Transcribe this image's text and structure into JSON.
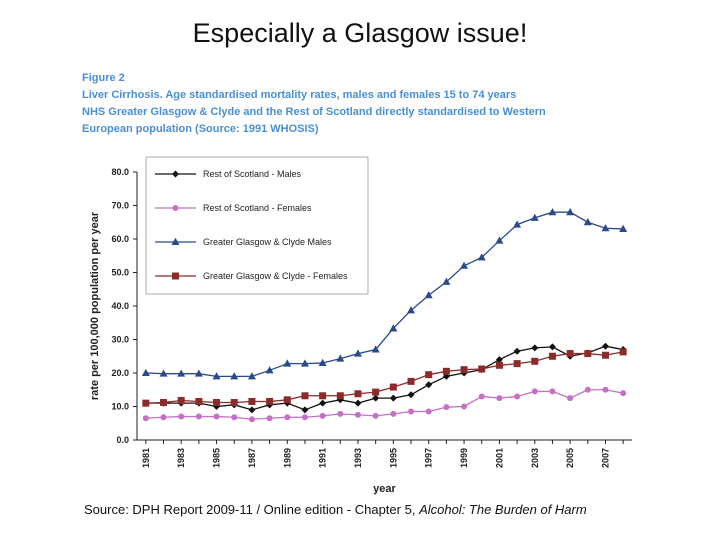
{
  "slide": {
    "title": "Especially a Glasgow issue!"
  },
  "figure": {
    "caption_lines": [
      "Figure 2",
      "Liver Cirrhosis. Age standardised mortality rates, males and females 15 to 74 years",
      "NHS Greater Glasgow & Clyde and the Rest of Scotland directly standardised to Western",
      "European population  (Source: 1991 WHOSIS)"
    ]
  },
  "source": {
    "prefix": "Source: DPH Report 2009-11 / Online edition - Chapter 5, ",
    "title": "Alcohol: The Burden of Harm"
  },
  "chart_data": {
    "type": "line",
    "title": "",
    "xlabel": "year",
    "ylabel": "rate per 100,000 population per year",
    "xlim": [
      1981,
      2008
    ],
    "ylim": [
      0,
      80
    ],
    "y_ticks": [
      "0.0",
      "10.0",
      "20.0",
      "30.0",
      "40.0",
      "50.0",
      "60.0",
      "70.0",
      "80.0"
    ],
    "x_ticks": [
      "1981",
      "1983",
      "1985",
      "1987",
      "1989",
      "1991",
      "1993",
      "1995",
      "1997",
      "1999",
      "2001",
      "2003",
      "2005",
      "2007"
    ],
    "grid": false,
    "legend_position": "top-left",
    "x": [
      1981,
      1982,
      1983,
      1984,
      1985,
      1986,
      1987,
      1988,
      1989,
      1990,
      1991,
      1992,
      1993,
      1994,
      1995,
      1996,
      1997,
      1998,
      1999,
      2000,
      2001,
      2002,
      2003,
      2004,
      2005,
      2006,
      2007,
      2008
    ],
    "series": [
      {
        "name": "Rest of Scotland - Males",
        "color": "#111111",
        "marker": "diamond",
        "values": [
          11.0,
          11.0,
          11.0,
          11.0,
          10.0,
          10.5,
          9.0,
          10.5,
          11.0,
          9.0,
          11.0,
          12.0,
          11.0,
          12.5,
          12.5,
          13.5,
          16.5,
          19.0,
          20.0,
          21.0,
          24.0,
          26.5,
          27.5,
          27.8,
          25.0,
          26.0,
          28.0,
          27.0
        ]
      },
      {
        "name": "Rest of Scotland - Females",
        "color": "#c470c4",
        "marker": "circle",
        "values": [
          6.5,
          6.8,
          7.0,
          7.0,
          7.0,
          6.8,
          6.2,
          6.5,
          6.8,
          6.8,
          7.2,
          7.8,
          7.5,
          7.2,
          7.8,
          8.5,
          8.5,
          9.8,
          10.0,
          13.0,
          12.5,
          13.0,
          14.5,
          14.5,
          12.5,
          15.0,
          15.0,
          14.0
        ]
      },
      {
        "name": "Greater Glasgow & Clyde Males",
        "color": "#2b4a8a",
        "marker": "triangle",
        "values": [
          20.0,
          19.8,
          19.8,
          19.8,
          19.0,
          19.0,
          19.0,
          20.8,
          22.8,
          22.8,
          23.0,
          24.3,
          25.8,
          27.0,
          33.3,
          38.7,
          43.2,
          47.2,
          52.0,
          54.5,
          59.5,
          64.3,
          66.3,
          68.0,
          68.0,
          65.0,
          63.2,
          63.0
        ]
      },
      {
        "name": "Greater Glasgow & Clyde - Females",
        "color": "#8b2b2b",
        "marker": "square",
        "values": [
          11.0,
          11.2,
          11.8,
          11.5,
          11.2,
          11.2,
          11.5,
          11.5,
          12.0,
          13.2,
          13.2,
          13.2,
          13.8,
          14.3,
          15.8,
          17.5,
          19.5,
          20.5,
          21.0,
          21.2,
          22.3,
          22.8,
          23.5,
          25.0,
          25.8,
          25.8,
          25.3,
          26.3
        ]
      }
    ]
  }
}
